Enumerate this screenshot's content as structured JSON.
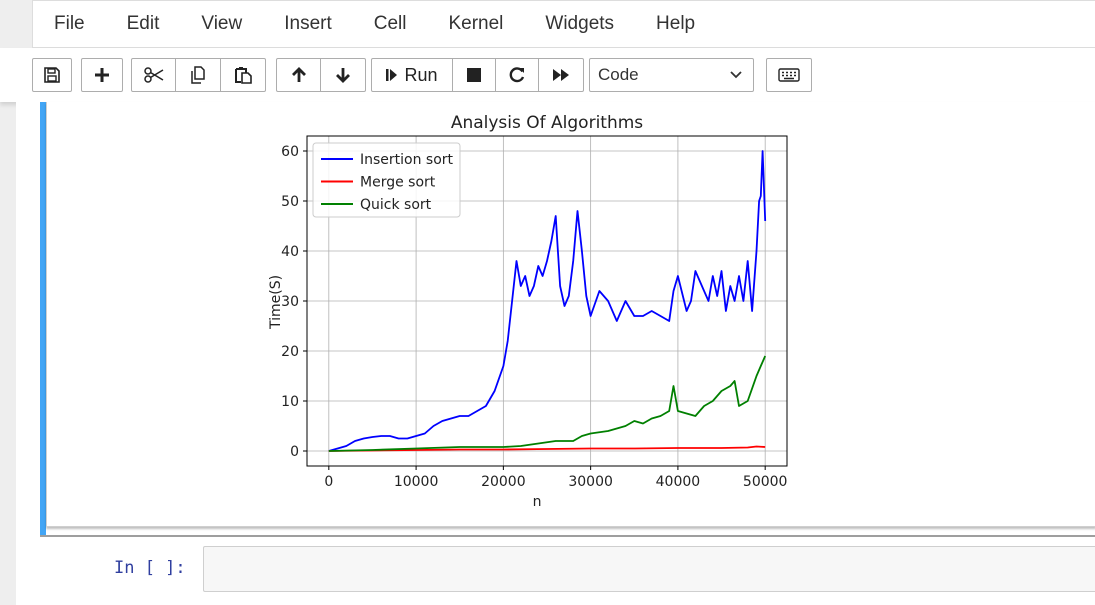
{
  "menubar": {
    "items": [
      "File",
      "Edit",
      "View",
      "Insert",
      "Cell",
      "Kernel",
      "Widgets",
      "Help"
    ]
  },
  "toolbar": {
    "run_label": "Run",
    "cell_type": "Code",
    "icons": [
      "save-icon",
      "plus-icon",
      "scissors-icon",
      "copy-icon",
      "paste-icon",
      "arrow-up-icon",
      "arrow-down-icon",
      "step-forward-icon",
      "stop-icon",
      "restart-icon",
      "fast-forward-icon",
      "keyboard-icon"
    ]
  },
  "input_cell": {
    "prompt": "In [ ]:"
  },
  "colors": {
    "selected_bar": "#42a5f5",
    "prompt": "#303f9f"
  },
  "chart_data": {
    "type": "line",
    "title": "Analysis Of Algorithms",
    "xlabel": "n",
    "ylabel": "Time(S)",
    "xlim": [
      -2500,
      52500
    ],
    "ylim": [
      -3,
      63
    ],
    "xticks": [
      0,
      10000,
      20000,
      30000,
      40000,
      50000
    ],
    "yticks": [
      0,
      10,
      20,
      30,
      40,
      50,
      60
    ],
    "grid": true,
    "legend": "top-left",
    "series": [
      {
        "name": "Insertion sort",
        "color": "#0000ff",
        "x": [
          0,
          2000,
          3000,
          4000,
          5000,
          6000,
          7000,
          8000,
          9000,
          10000,
          11000,
          12000,
          13000,
          14000,
          15000,
          16000,
          17000,
          18000,
          19000,
          20000,
          20500,
          21000,
          21500,
          22000,
          22500,
          23000,
          23500,
          24000,
          24500,
          25000,
          25500,
          26000,
          26500,
          27000,
          27500,
          28000,
          28500,
          29000,
          29500,
          30000,
          31000,
          32000,
          33000,
          34000,
          35000,
          36000,
          37000,
          38000,
          39000,
          39500,
          40000,
          41000,
          41500,
          42000,
          43000,
          43500,
          44000,
          44500,
          45000,
          45500,
          46000,
          46500,
          47000,
          47500,
          48000,
          48500,
          49000,
          49300,
          49500,
          49700,
          50000
        ],
        "y": [
          0,
          1,
          2,
          2.5,
          2.8,
          3,
          3,
          2.5,
          2.5,
          3,
          3.5,
          5,
          6,
          6.5,
          7,
          7,
          8,
          9,
          12,
          17,
          22,
          30,
          38,
          33,
          35,
          31,
          33,
          37,
          35,
          38,
          42,
          47,
          33,
          29,
          31,
          38,
          48,
          40,
          31,
          27,
          32,
          30,
          26,
          30,
          27,
          27,
          28,
          27,
          26,
          32,
          35,
          28,
          30,
          36,
          32,
          30,
          35,
          31,
          36,
          28,
          33,
          30,
          35,
          30,
          38,
          28,
          40,
          50,
          51,
          60,
          46
        ]
      },
      {
        "name": "Merge sort",
        "color": "#ff0000",
        "x": [
          0,
          5000,
          10000,
          15000,
          20000,
          25000,
          30000,
          35000,
          40000,
          45000,
          48000,
          49000,
          50000
        ],
        "y": [
          0,
          0.1,
          0.2,
          0.3,
          0.3,
          0.4,
          0.5,
          0.5,
          0.6,
          0.6,
          0.7,
          0.9,
          0.8
        ]
      },
      {
        "name": "Quick sort",
        "color": "#008000",
        "x": [
          0,
          5000,
          10000,
          15000,
          20000,
          22000,
          24000,
          26000,
          28000,
          29000,
          30000,
          32000,
          34000,
          35000,
          36000,
          37000,
          38000,
          39000,
          39500,
          40000,
          41000,
          42000,
          43000,
          44000,
          45000,
          46000,
          46500,
          47000,
          48000,
          49000,
          49500,
          50000
        ],
        "y": [
          0,
          0.2,
          0.5,
          0.8,
          0.8,
          1,
          1.5,
          2,
          2,
          3,
          3.5,
          4,
          5,
          6,
          5.5,
          6.5,
          7,
          8,
          13,
          8,
          7.5,
          7,
          9,
          10,
          12,
          13,
          14,
          9,
          10,
          15,
          17,
          19
        ]
      }
    ]
  }
}
